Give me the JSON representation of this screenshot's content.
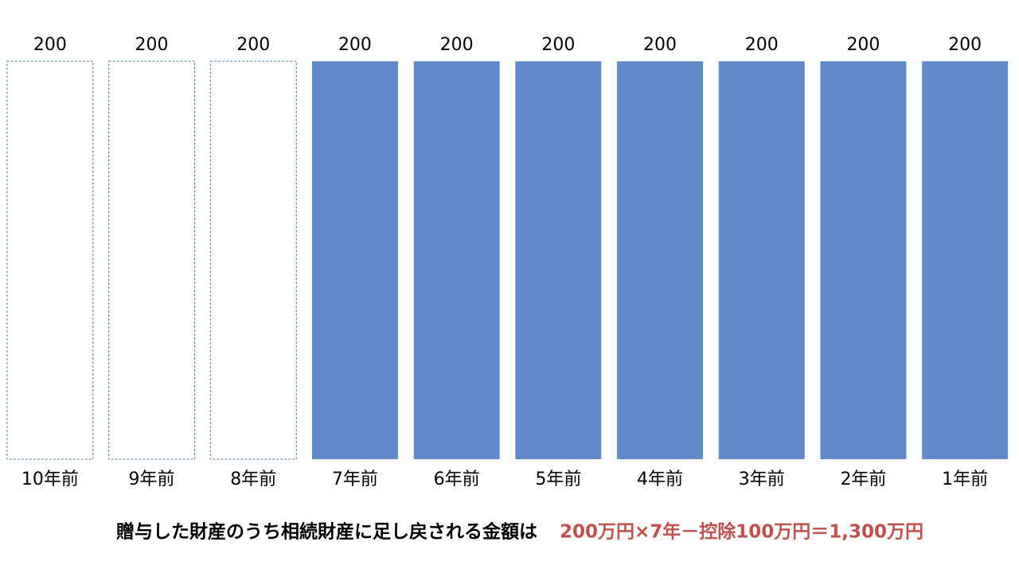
{
  "chart_data": {
    "type": "bar",
    "categories": [
      "10年前",
      "9年前",
      "8年前",
      "7年前",
      "6年前",
      "5年前",
      "4年前",
      "3年前",
      "2年前",
      "1年前"
    ],
    "values": [
      200,
      200,
      200,
      200,
      200,
      200,
      200,
      200,
      200,
      200
    ],
    "styles": [
      "dashed",
      "dashed",
      "dashed",
      "solid",
      "solid",
      "solid",
      "solid",
      "solid",
      "solid",
      "solid"
    ],
    "color": "#5f8bcd",
    "ylim": [
      0,
      200
    ],
    "note": "贈与した財産のうち相続財産に足し戻される金額は",
    "formula": "200万円×7年－控除100万円＝1,300万円",
    "formula_color": "#c0504d"
  }
}
